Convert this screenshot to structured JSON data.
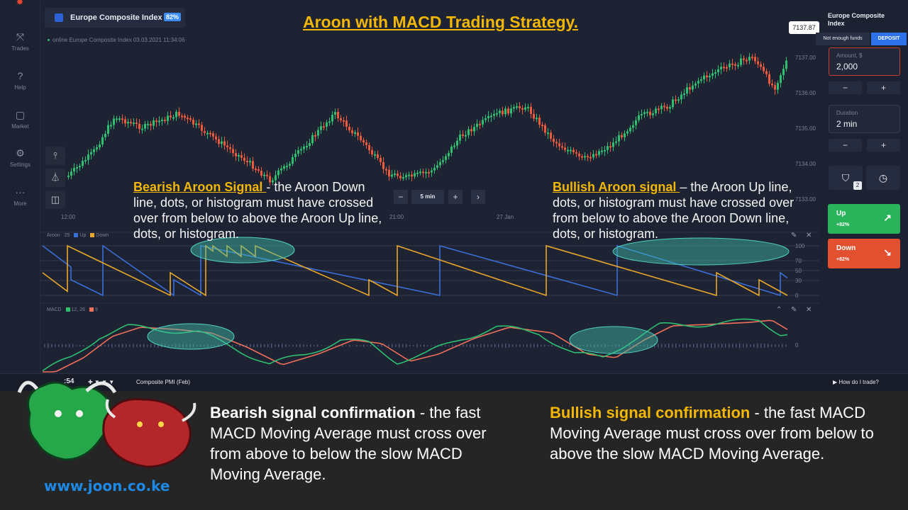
{
  "title": "Aroon with MACD Trading Strategy.",
  "asset": {
    "name": "Europe Composite Index",
    "payout": "82%",
    "online_text": "online Europe Composite Index 03.03.2021 11:34:06"
  },
  "nav": [
    {
      "label": "Trades",
      "icon": "trades-icon"
    },
    {
      "label": "Help",
      "icon": "help-icon"
    },
    {
      "label": "Market",
      "icon": "market-icon"
    },
    {
      "label": "Settings",
      "icon": "settings-icon"
    },
    {
      "label": "More",
      "icon": "more-icon"
    }
  ],
  "timeframe": {
    "label": "5 min",
    "minus": "−",
    "plus": "+",
    "next": "›"
  },
  "x_labels": [
    "12:00",
    "21:00",
    "27 Jan"
  ],
  "y_labels": [
    "7137.00",
    "7136.00",
    "7135.00",
    "7134.00",
    "7133.00"
  ],
  "current_price": "7137.87",
  "aroon": {
    "label": "Aroon",
    "period": "25",
    "up": "Up",
    "down": "Down",
    "levels": [
      "100",
      "70",
      "50",
      "30",
      "0"
    ],
    "up_color": "#3a6fd8",
    "down_color": "#e8a72a"
  },
  "macd": {
    "label": "MACD",
    "fast_slow": "12, 26",
    "signal": "9",
    "zero": "0",
    "fast_color": "#2fbf71",
    "slow_color": "#ef6f5a"
  },
  "annotations": {
    "bearish": {
      "heading": "Bearish Aroon Signal ",
      "text": "- the Aroon Down line, dots, or histogram must have crossed over from below to above the Aroon Up line, dots, or histogram."
    },
    "bullish": {
      "heading": "Bullish Aroon signal ",
      "text": "– the Aroon Up line, dots, or histogram must have crossed over from below to above the Aroon Down line, dots, or histogram."
    }
  },
  "right_panel": {
    "asset": "Europe Composite Index",
    "not_enough": "Not enough funds",
    "deposit": "DEPOSIT",
    "amount_label": "Amount, $",
    "amount_value": "2,000",
    "duration_label": "Duration",
    "duration_value": "2 min",
    "minus": "−",
    "plus": "+",
    "badge": "2",
    "up_label": "Up",
    "up_pct": "+82%",
    "down_label": "Down",
    "down_pct": "+82%"
  },
  "bottom_strip": {
    "time": ":54",
    "event": "Composite PMI (Feb)",
    "help": "How do I trade?"
  },
  "confirm": {
    "bearish": {
      "heading": "Bearish signal confirmation",
      "text": " - the fast MACD Moving Average must cross over from above to below the slow MACD Moving Average."
    },
    "bullish": {
      "heading": "Bullish signal confirmation",
      "text": " - the fast MACD Moving Average must cross over from below to above the slow MACD Moving Average."
    }
  },
  "site": "www.joon.co.ke"
}
